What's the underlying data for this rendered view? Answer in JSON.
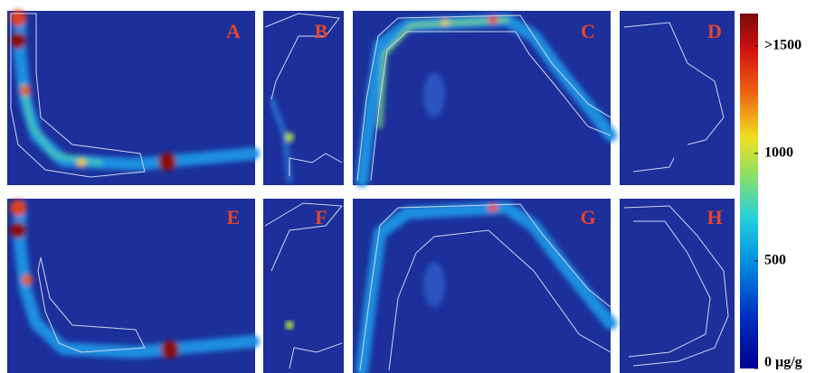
{
  "panels": [
    {
      "label": "A"
    },
    {
      "label": "B"
    },
    {
      "label": "C"
    },
    {
      "label": "D"
    },
    {
      "label": "E"
    },
    {
      "label": "F"
    },
    {
      "label": "G"
    },
    {
      "label": "H"
    }
  ],
  "colorbar": {
    "range": [
      0,
      1650
    ],
    "ticks": [
      {
        "value": 1500,
        "label": ">1500"
      },
      1000,
      500,
      {
        "value": 0,
        "label": "0 µg/g"
      }
    ]
  }
}
